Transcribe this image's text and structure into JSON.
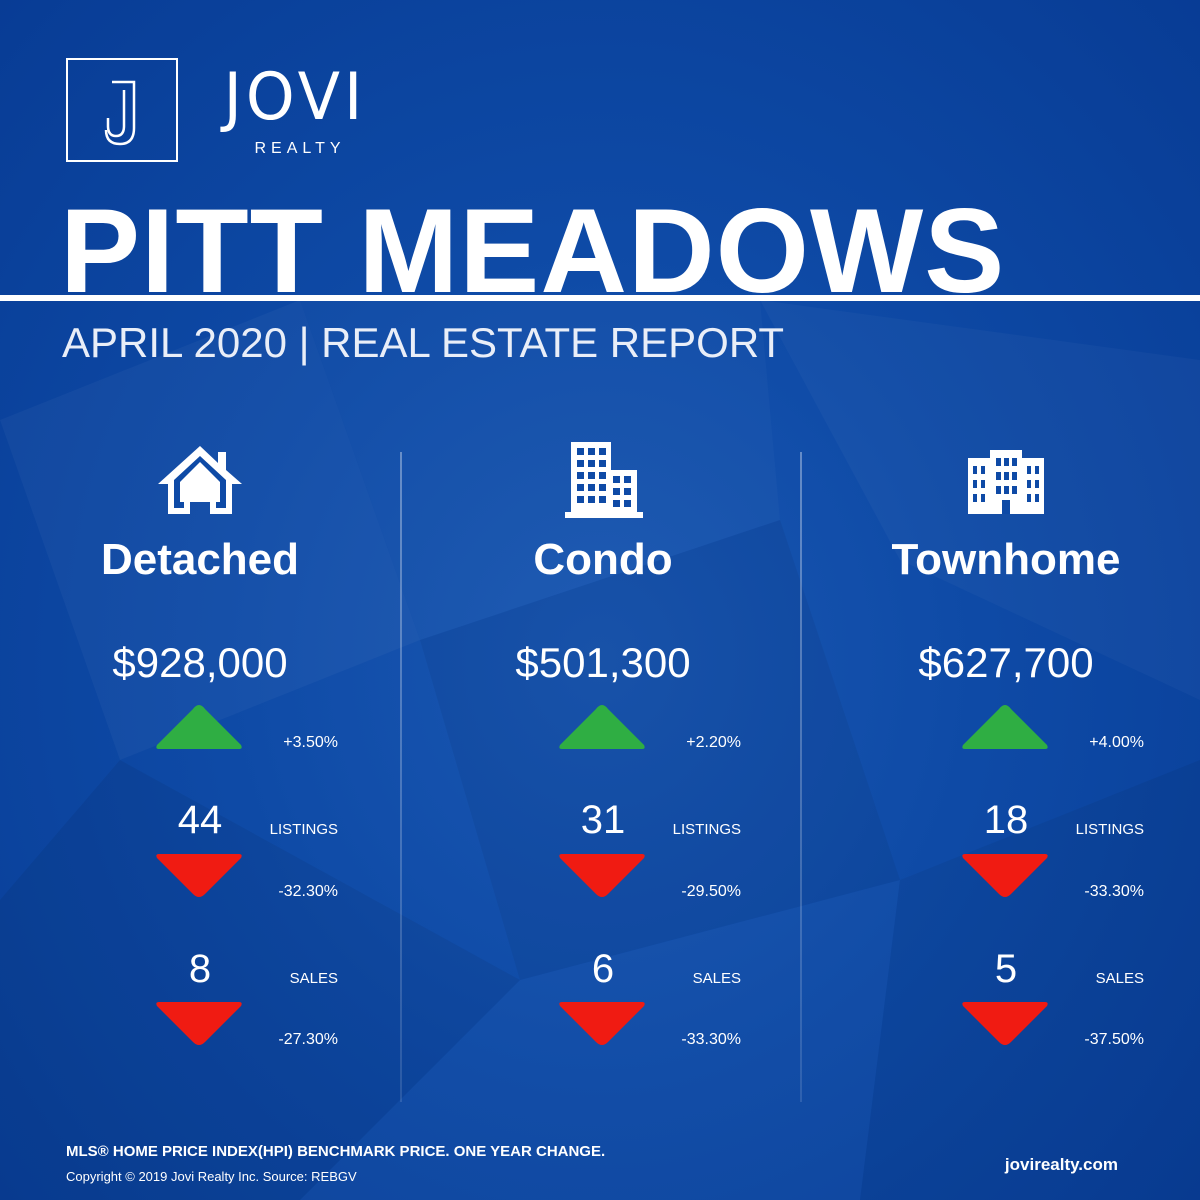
{
  "brand": {
    "name": "JOVI",
    "sub": "REALTY",
    "logo_letter": "J"
  },
  "header": {
    "city": "PITT MEADOWS",
    "subtitle": "APRIL 2020 | REAL ESTATE REPORT"
  },
  "labels": {
    "listings": "LISTINGS",
    "sales": "SALES"
  },
  "colors": {
    "background": "#0e4aa6",
    "up": "#2fae43",
    "down": "#f01b12",
    "text": "#ffffff"
  },
  "columns": [
    {
      "icon": "house-icon",
      "title": "Detached",
      "price": "$928,000",
      "price_change": "+3.50%",
      "price_direction": "up",
      "listings": "44",
      "listings_change": "-32.30%",
      "listings_direction": "down",
      "sales": "8",
      "sales_change": "-27.30%",
      "sales_direction": "down"
    },
    {
      "icon": "condo-building-icon",
      "title": "Condo",
      "price": "$501,300",
      "price_change": "+2.20%",
      "price_direction": "up",
      "listings": "31",
      "listings_change": "-29.50%",
      "listings_direction": "down",
      "sales": "6",
      "sales_change": "-33.30%",
      "sales_direction": "down"
    },
    {
      "icon": "townhome-building-icon",
      "title": "Townhome",
      "price": "$627,700",
      "price_change": "+4.00%",
      "price_direction": "up",
      "listings": "18",
      "listings_change": "-33.30%",
      "listings_direction": "down",
      "sales": "5",
      "sales_change": "-37.50%",
      "sales_direction": "down"
    }
  ],
  "footer": {
    "note": "MLS® HOME PRICE INDEX(HPI) BENCHMARK PRICE. ONE YEAR CHANGE.",
    "copyright": "Copyright © 2019 Jovi Realty Inc. Source: REBGV",
    "website": "jovirealty.com"
  }
}
